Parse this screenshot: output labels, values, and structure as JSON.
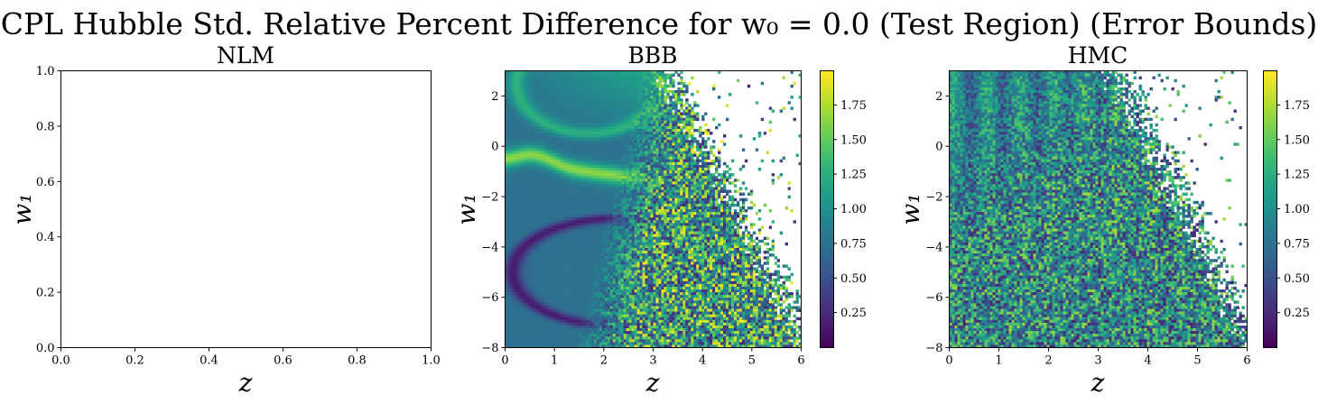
{
  "suptitle": "CPL Hubble Std. Relative Percent Difference for w₀ = 0.0 (Test Region) (Error Bounds)",
  "colors": {
    "viridis": [
      "#440154",
      "#482878",
      "#3e4989",
      "#31688e",
      "#26828e",
      "#1f9e89",
      "#35b779",
      "#6ece58",
      "#b5de2b",
      "#fde725"
    ]
  },
  "chart_data": [
    {
      "type": "heatmap",
      "title": "NLM",
      "xlabel": "z",
      "ylabel": "w₁",
      "xlim": [
        0.0,
        1.0
      ],
      "ylim": [
        0.0,
        1.0
      ],
      "xticks": [
        "0.0",
        "0.2",
        "0.4",
        "0.6",
        "0.8",
        "1.0"
      ],
      "yticks": [
        "0.0",
        "0.2",
        "0.4",
        "0.6",
        "0.8",
        "1.0"
      ],
      "empty": true
    },
    {
      "type": "heatmap",
      "title": "BBB",
      "xlabel": "z",
      "ylabel": "w₁",
      "xlim": [
        0,
        6
      ],
      "ylim": [
        -8,
        3
      ],
      "xticks": [
        "0",
        "1",
        "2",
        "3",
        "4",
        "5",
        "6"
      ],
      "yticks": [
        "−8",
        "−6",
        "−4",
        "−2",
        "0",
        "2"
      ],
      "colorbar": {
        "range": [
          0.0,
          2.0
        ],
        "ticks": [
          "0.25",
          "0.50",
          "0.75",
          "1.00",
          "1.25",
          "1.50",
          "1.75"
        ]
      },
      "colormap": "viridis"
    },
    {
      "type": "heatmap",
      "title": "HMC",
      "xlabel": "z",
      "ylabel": "w₁",
      "xlim": [
        0,
        6
      ],
      "ylim": [
        -8,
        3
      ],
      "xticks": [
        "0",
        "1",
        "2",
        "3",
        "4",
        "5",
        "6"
      ],
      "yticks": [
        "−8",
        "−6",
        "−4",
        "−2",
        "0",
        "2"
      ],
      "colorbar": {
        "range": [
          0.0,
          2.0
        ],
        "ticks": [
          "0.25",
          "0.50",
          "0.75",
          "1.00",
          "1.25",
          "1.50",
          "1.75"
        ]
      },
      "colormap": "viridis"
    }
  ]
}
